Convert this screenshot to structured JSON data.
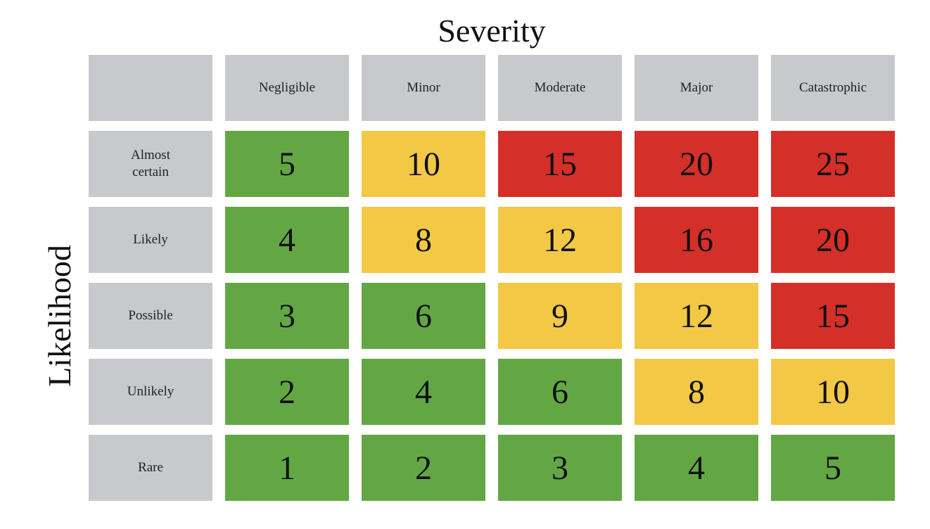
{
  "title_top": "Severity",
  "title_left": "Likelihood",
  "severity_labels": [
    "Negligible",
    "Minor",
    "Moderate",
    "Major",
    "Catastrophic"
  ],
  "likelihood_labels": [
    "Almost\ncertain",
    "Likely",
    "Possible",
    "Unlikely",
    "Rare"
  ],
  "colors": {
    "header": "#c8c9cc",
    "low": "#62a744",
    "medium": "#f2c845",
    "high": "#d42f28"
  },
  "matrix": [
    {
      "values": [
        "5",
        "10",
        "15",
        "20",
        "25"
      ],
      "levels": [
        "low",
        "medium",
        "high",
        "high",
        "high"
      ]
    },
    {
      "values": [
        "4",
        "8",
        "12",
        "16",
        "20"
      ],
      "levels": [
        "low",
        "medium",
        "medium",
        "high",
        "high"
      ]
    },
    {
      "values": [
        "3",
        "6",
        "9",
        "12",
        "15"
      ],
      "levels": [
        "low",
        "low",
        "medium",
        "medium",
        "high"
      ]
    },
    {
      "values": [
        "2",
        "4",
        "6",
        "8",
        "10"
      ],
      "levels": [
        "low",
        "low",
        "low",
        "medium",
        "medium"
      ]
    },
    {
      "values": [
        "1",
        "2",
        "3",
        "4",
        "5"
      ],
      "levels": [
        "low",
        "low",
        "low",
        "low",
        "low"
      ]
    }
  ]
}
